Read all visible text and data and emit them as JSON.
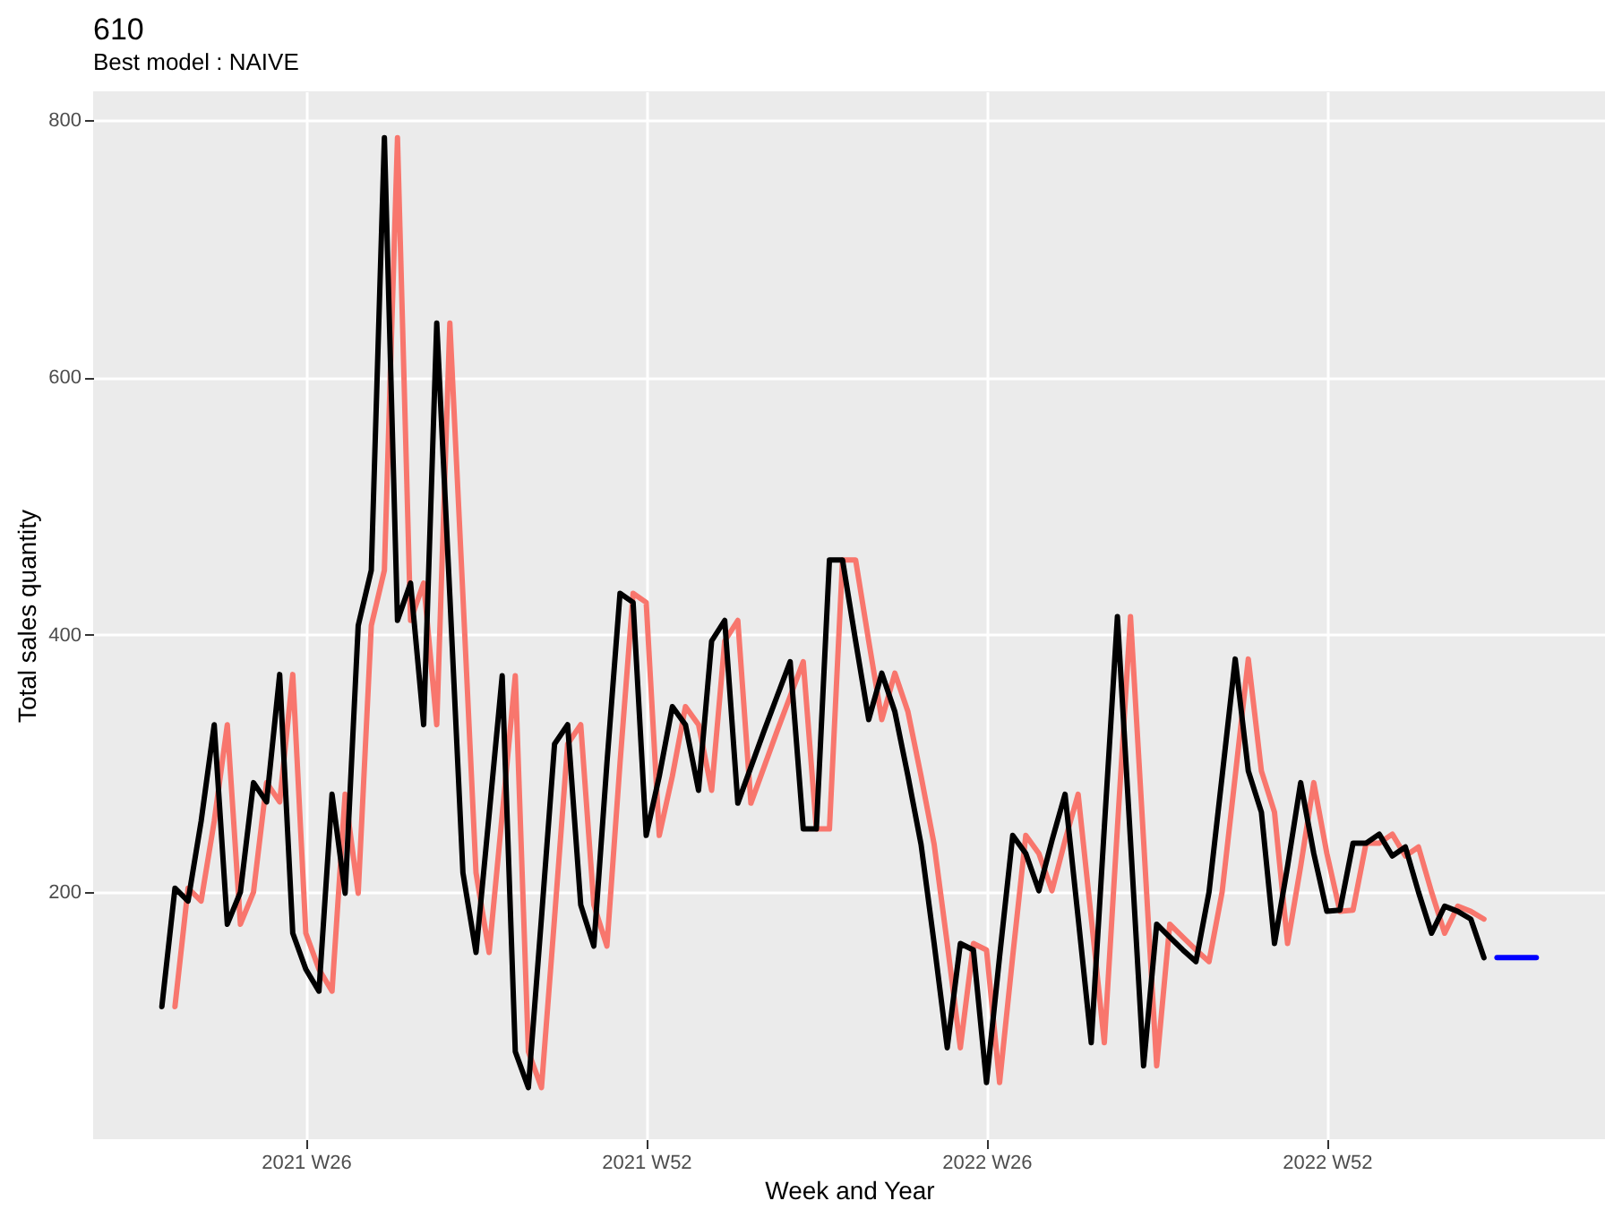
{
  "chart_data": {
    "type": "line",
    "title": "610",
    "subtitle": "Best model : NAIVE",
    "xlabel": "Week and Year",
    "ylabel": "Total sales quantity",
    "categories": [
      null,
      null,
      null,
      null,
      null,
      null,
      null,
      null,
      null,
      null,
      null,
      "2021 W26",
      null,
      null,
      null,
      null,
      null,
      null,
      null,
      null,
      null,
      null,
      null,
      null,
      null,
      null,
      null,
      null,
      null,
      null,
      null,
      null,
      null,
      null,
      null,
      null,
      null,
      "2021 W52",
      null,
      null,
      null,
      null,
      null,
      null,
      null,
      null,
      null,
      null,
      null,
      null,
      null,
      null,
      null,
      null,
      null,
      null,
      null,
      null,
      null,
      null,
      null,
      null,
      null,
      "2022 W26",
      null,
      null,
      null,
      null,
      null,
      null,
      null,
      null,
      null,
      null,
      null,
      null,
      null,
      null,
      null,
      null,
      null,
      null,
      null,
      null,
      null,
      null,
      null,
      null,
      null,
      "2022 W52",
      null,
      null,
      null,
      null,
      null,
      null,
      null,
      null,
      null,
      null,
      null,
      null,
      null,
      null,
      null,
      null
    ],
    "ylim": [
      8,
      822
    ],
    "yticks": [
      200,
      400,
      600,
      800
    ],
    "grid": true,
    "line_style": "solid",
    "marker": "none",
    "series": [
      {
        "color": "#f8766d",
        "values": [
          null,
          111,
          203,
          193,
          255,
          330,
          175,
          200,
          285,
          270,
          369,
          168,
          140,
          123,
          276,
          199,
          407,
          450,
          786,
          411,
          440,
          330,
          642,
          430,
          215,
          153,
          260,
          368,
          76,
          48,
          180,
          315,
          330,
          190,
          158,
          300,
          432,
          425,
          244,
          290,
          344,
          330,
          279,
          395,
          411,
          269,
          297,
          325,
          352,
          379,
          249,
          249,
          458,
          458,
          395,
          334,
          370,
          340,
          290,
          237,
          160,
          79,
          160,
          155,
          52,
          150,
          244,
          230,
          201,
          240,
          276,
          180,
          83,
          250,
          414,
          240,
          65,
          175,
          165,
          155,
          146,
          200,
          290,
          381,
          294,
          262,
          160,
          220,
          285,
          230,
          185,
          186,
          238,
          238,
          245,
          228,
          235,
          200,
          168,
          189,
          185,
          179,
          null,
          null,
          null,
          null
        ]
      },
      {
        "color": "#000000",
        "values": [
          111,
          203,
          193,
          255,
          330,
          175,
          200,
          285,
          270,
          369,
          168,
          140,
          123,
          276,
          199,
          407,
          450,
          786,
          411,
          440,
          330,
          642,
          430,
          215,
          153,
          260,
          368,
          76,
          48,
          180,
          315,
          330,
          190,
          158,
          300,
          432,
          425,
          244,
          290,
          344,
          330,
          279,
          395,
          411,
          269,
          297,
          325,
          352,
          379,
          249,
          249,
          458,
          458,
          395,
          334,
          370,
          340,
          290,
          237,
          160,
          79,
          160,
          155,
          52,
          150,
          244,
          230,
          201,
          240,
          276,
          180,
          83,
          250,
          414,
          240,
          65,
          175,
          165,
          155,
          146,
          200,
          290,
          381,
          294,
          262,
          160,
          220,
          285,
          230,
          185,
          186,
          238,
          238,
          245,
          228,
          235,
          200,
          168,
          189,
          185,
          179,
          149,
          null,
          null,
          null,
          null
        ]
      },
      {
        "color": "#0000ff",
        "values": [
          null,
          null,
          null,
          null,
          null,
          null,
          null,
          null,
          null,
          null,
          null,
          null,
          null,
          null,
          null,
          null,
          null,
          null,
          null,
          null,
          null,
          null,
          null,
          null,
          null,
          null,
          null,
          null,
          null,
          null,
          null,
          null,
          null,
          null,
          null,
          null,
          null,
          null,
          null,
          null,
          null,
          null,
          null,
          null,
          null,
          null,
          null,
          null,
          null,
          null,
          null,
          null,
          null,
          null,
          null,
          null,
          null,
          null,
          null,
          null,
          null,
          null,
          null,
          null,
          null,
          null,
          null,
          null,
          null,
          null,
          null,
          null,
          null,
          null,
          null,
          null,
          null,
          null,
          null,
          null,
          null,
          null,
          null,
          null,
          null,
          null,
          null,
          null,
          null,
          null,
          null,
          null,
          null,
          null,
          null,
          null,
          null,
          null,
          null,
          null,
          null,
          null,
          149,
          149,
          149,
          149
        ]
      }
    ]
  }
}
